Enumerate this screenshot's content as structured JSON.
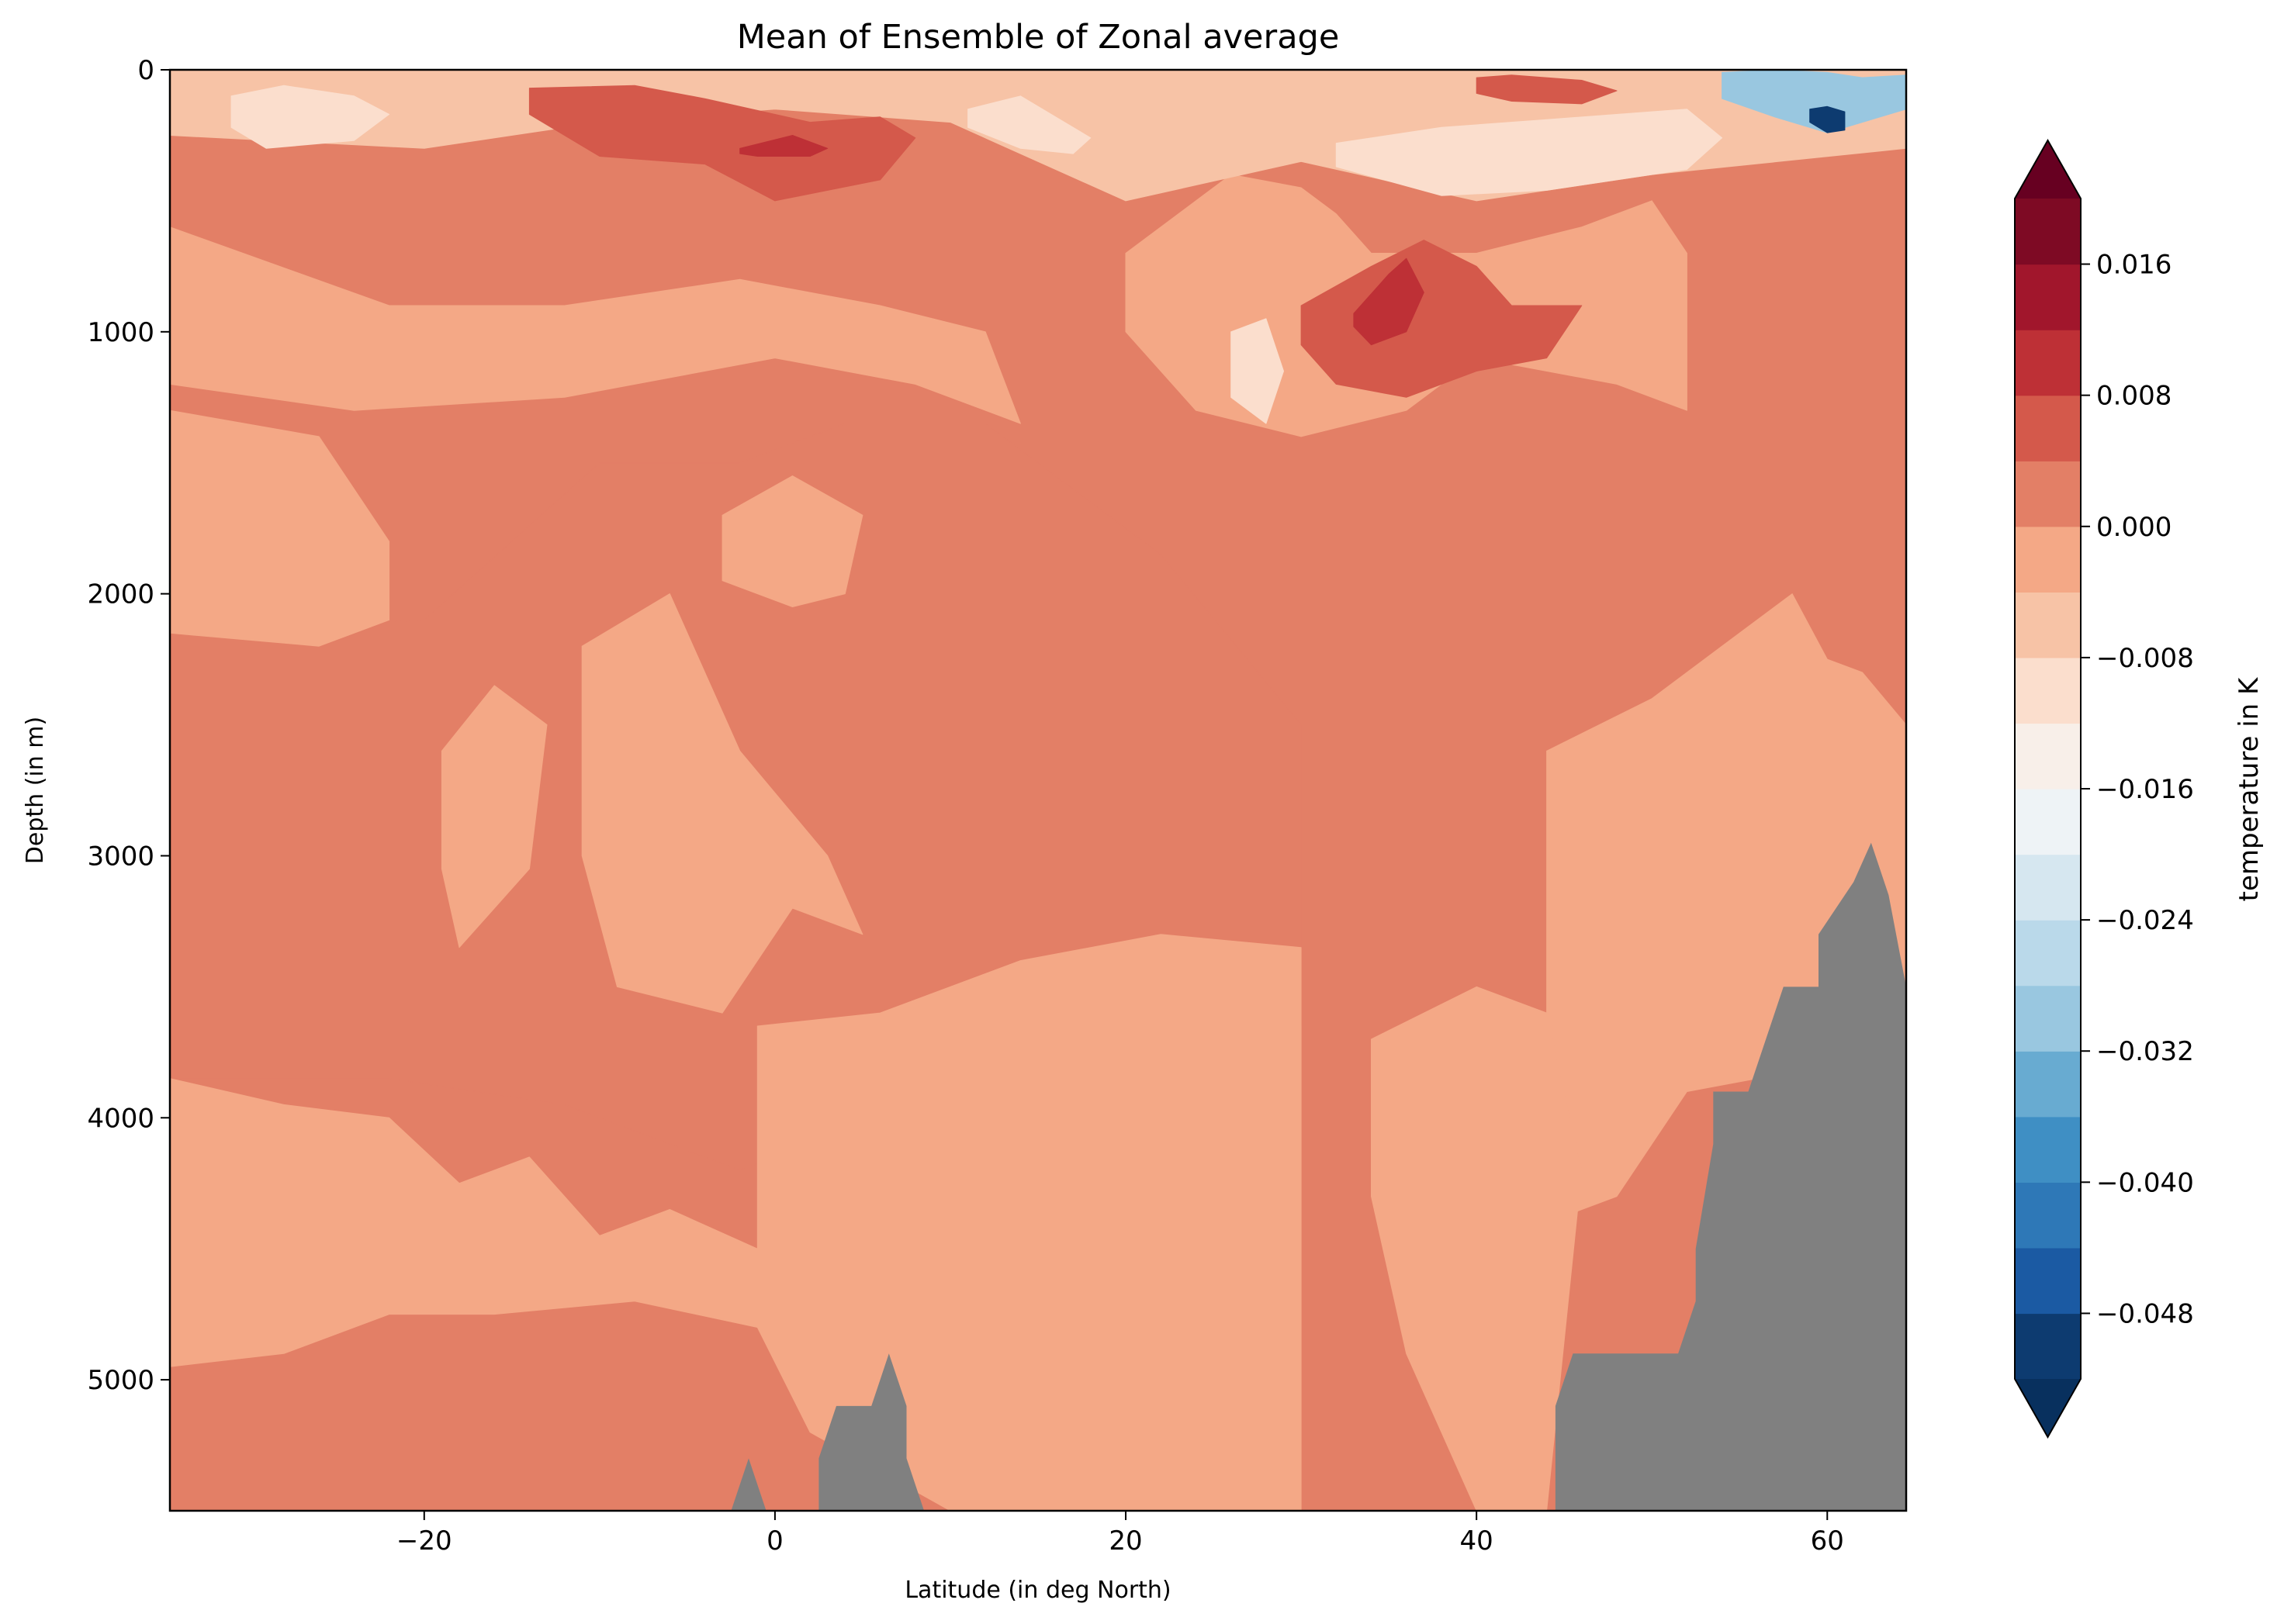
{
  "chart_data": {
    "type": "heatmap",
    "title": "Mean of Ensemble of Zonal average",
    "xlabel": "Latitude (in deg North)",
    "ylabel": "Depth (in m)",
    "xlim": [
      -34.5,
      64.5
    ],
    "ylim": [
      5500,
      0
    ],
    "y_inverted": true,
    "x_ticks": [
      {
        "value": -20,
        "label": "−20"
      },
      {
        "value": 0,
        "label": "0"
      },
      {
        "value": 20,
        "label": "20"
      },
      {
        "value": 40,
        "label": "40"
      },
      {
        "value": 60,
        "label": "60"
      }
    ],
    "y_ticks": [
      {
        "value": 0,
        "label": "0"
      },
      {
        "value": 1000,
        "label": "1000"
      },
      {
        "value": 2000,
        "label": "2000"
      },
      {
        "value": 3000,
        "label": "3000"
      },
      {
        "value": 4000,
        "label": "4000"
      },
      {
        "value": 5000,
        "label": "5000"
      }
    ],
    "grid": false,
    "colormap": "RdBu_r",
    "nan_color": "#808080",
    "colorbar": {
      "label": "temperature in K",
      "levels": [
        -0.052,
        -0.048,
        -0.044,
        -0.04,
        -0.036,
        -0.032,
        -0.028,
        -0.024,
        -0.02,
        -0.016,
        -0.012,
        -0.008,
        -0.004,
        0.0,
        0.004,
        0.008,
        0.012,
        0.016,
        0.02
      ],
      "colors": [
        "#0d3b70",
        "#1b5aa3",
        "#2e78b7",
        "#3f8fc4",
        "#68abd1",
        "#99c7e0",
        "#bad9ea",
        "#d6e7f0",
        "#eef3f6",
        "#f8efe9",
        "#fbdecd",
        "#f7c3a6",
        "#f4a886",
        "#e37f66",
        "#d4594b",
        "#be3036",
        "#a1162c",
        "#7e0a24"
      ],
      "under_color": "#08305e",
      "over_color": "#670021",
      "extend": "both",
      "ticks": [
        {
          "value": 0.016,
          "label": "0.016"
        },
        {
          "value": 0.008,
          "label": "0.008"
        },
        {
          "value": 0.0,
          "label": "0.000"
        },
        {
          "value": -0.008,
          "label": "−0.008"
        },
        {
          "value": -0.016,
          "label": "−0.016"
        },
        {
          "value": -0.024,
          "label": "−0.024"
        },
        {
          "value": -0.032,
          "label": "−0.032"
        },
        {
          "value": -0.04,
          "label": "−0.040"
        },
        {
          "value": -0.048,
          "label": "−0.048"
        }
      ]
    },
    "background_value": 0.002,
    "regions": [
      {
        "desc": "warm core band near 2000-3800 m, west",
        "value": 0.002,
        "x": [
          -34.5,
          -20,
          -10,
          -2,
          4,
          12,
          22,
          30,
          30,
          22,
          12,
          4,
          -2,
          -12,
          -22,
          -34.5
        ],
        "y": [
          2150,
          2100,
          1500,
          1500,
          1350,
          1350,
          1850,
          2500,
          3650,
          4100,
          4300,
          4050,
          4200,
          3950,
          3850,
          3850
        ]
      },
      {
        "desc": "mid-depth cool band",
        "value": -0.002,
        "x": [
          -34.5,
          -22,
          -12,
          -2,
          6,
          12,
          14,
          8,
          0,
          -12,
          -24,
          -34.5
        ],
        "y": [
          600,
          900,
          900,
          800,
          900,
          1000,
          1350,
          1200,
          1100,
          1250,
          1300,
          1200
        ]
      },
      {
        "desc": "cool patch -30..-20 mid",
        "value": -0.002,
        "x": [
          -34.5,
          -26,
          -22,
          -22,
          -26,
          -34.5
        ],
        "y": [
          1300,
          1400,
          1800,
          2100,
          2200,
          2150
        ]
      },
      {
        "desc": "cool patch near -15",
        "value": -0.002,
        "x": [
          -19,
          -16,
          -13,
          -14,
          -18,
          -19
        ],
        "y": [
          2600,
          2350,
          2500,
          3050,
          3350,
          3050
        ]
      },
      {
        "desc": "cool patch near -8",
        "value": -0.002,
        "x": [
          -11,
          -6,
          -2,
          3,
          5,
          1,
          -3,
          -9,
          -11
        ],
        "y": [
          2200,
          2000,
          2600,
          3000,
          3300,
          3200,
          3600,
          3500,
          3000
        ]
      },
      {
        "desc": "cool patch 8-13 near 1500 m",
        "value": -0.002,
        "x": [
          -3,
          1,
          5,
          4,
          1,
          -3
        ],
        "y": [
          1700,
          1550,
          1700,
          2000,
          2050,
          1950
        ]
      },
      {
        "desc": "cool lower west",
        "value": -0.002,
        "x": [
          -34.5,
          -28,
          -22,
          -18,
          -14,
          -10,
          -6,
          -1,
          -1,
          -8,
          -16,
          -22,
          -28,
          -34.5
        ],
        "y": [
          3850,
          3950,
          4000,
          4250,
          4150,
          4450,
          4350,
          4500,
          4800,
          4700,
          4750,
          4750,
          4900,
          4950
        ]
      },
      {
        "desc": "cool central deep",
        "value": -0.002,
        "x": [
          -1,
          6,
          14,
          22,
          30,
          30,
          26,
          18,
          10,
          2,
          -1
        ],
        "y": [
          3650,
          3600,
          3400,
          3300,
          3350,
          5500,
          5500,
          5500,
          5500,
          5200,
          4800
        ]
      },
      {
        "desc": "cool east mid upper",
        "value": -0.002,
        "x": [
          20,
          26,
          30,
          32,
          34,
          40,
          46,
          50,
          52,
          52,
          48,
          44,
          40,
          36,
          30,
          24,
          20
        ],
        "y": [
          700,
          400,
          450,
          550,
          700,
          700,
          600,
          500,
          700,
          1300,
          1200,
          1150,
          1100,
          1300,
          1400,
          1300,
          1000
        ]
      },
      {
        "desc": "cool east deep",
        "value": -0.002,
        "x": [
          44,
          50,
          54,
          58,
          60,
          62,
          64.5,
          64.5,
          60,
          56,
          52,
          48,
          44
        ],
        "y": [
          2600,
          2400,
          2200,
          2000,
          2250,
          2300,
          2500,
          3500,
          3700,
          3850,
          3900,
          4300,
          4400
        ]
      },
      {
        "desc": "cool east band",
        "value": -0.002,
        "x": [
          34,
          40,
          44,
          46,
          44,
          40,
          36,
          34
        ],
        "y": [
          3700,
          3500,
          3600,
          4200,
          5500,
          5500,
          4900,
          4300
        ]
      },
      {
        "desc": "surface cool layer",
        "value": -0.006,
        "x": [
          -34.5,
          -20,
          -10,
          0,
          10,
          20,
          30,
          40,
          50,
          64.5,
          64.5,
          50,
          40,
          30,
          20,
          10,
          0,
          -10,
          -20,
          -34.5
        ],
        "y": [
          0,
          0,
          0,
          0,
          0,
          0,
          0,
          0,
          0,
          0,
          300,
          400,
          500,
          350,
          500,
          200,
          150,
          200,
          300,
          250
        ]
      },
      {
        "desc": "cool surface patch -28..-22",
        "value": -0.01,
        "x": [
          -31,
          -28,
          -24,
          -22,
          -24,
          -29,
          -31
        ],
        "y": [
          100,
          60,
          100,
          170,
          270,
          300,
          220
        ]
      },
      {
        "desc": "cool surface patch 14",
        "value": -0.01,
        "x": [
          11,
          14,
          16,
          18,
          17,
          14,
          11
        ],
        "y": [
          150,
          100,
          180,
          260,
          320,
          300,
          220
        ]
      },
      {
        "desc": "cool surface 32-54",
        "value": -0.01,
        "x": [
          32,
          38,
          44,
          52,
          54,
          52,
          44,
          38,
          32
        ],
        "y": [
          280,
          220,
          190,
          150,
          260,
          380,
          460,
          480,
          370
        ]
      },
      {
        "desc": "cool surface patch 27",
        "value": -0.01,
        "x": [
          26,
          28,
          29,
          28,
          26
        ],
        "y": [
          1000,
          950,
          1150,
          1350,
          1250
        ]
      },
      {
        "desc": "warm surface -10..2",
        "value": 0.006,
        "x": [
          -14,
          -8,
          -4,
          2,
          6,
          8,
          6,
          0,
          -4,
          -10,
          -14
        ],
        "y": [
          70,
          60,
          110,
          200,
          180,
          260,
          420,
          500,
          360,
          330,
          170
        ]
      },
      {
        "desc": "warm surface 38-46",
        "value": 0.006,
        "x": [
          40,
          42,
          46,
          48,
          46,
          42,
          40
        ],
        "y": [
          30,
          20,
          40,
          80,
          130,
          120,
          90
        ]
      },
      {
        "desc": "warm subsurface 32-40",
        "value": 0.006,
        "x": [
          30,
          34,
          37,
          40,
          42,
          46,
          44,
          40,
          36,
          32,
          30
        ],
        "y": [
          900,
          750,
          650,
          750,
          900,
          900,
          1100,
          1150,
          1250,
          1200,
          1050
        ]
      },
      {
        "desc": "hot core near 0",
        "value": 0.01,
        "x": [
          -2,
          1,
          3,
          2,
          -1,
          -2
        ],
        "y": [
          300,
          250,
          300,
          330,
          330,
          320
        ]
      },
      {
        "desc": "hot core near 36",
        "value": 0.01,
        "x": [
          33,
          35,
          36,
          37,
          36,
          34,
          33
        ],
        "y": [
          930,
          780,
          720,
          850,
          1000,
          1050,
          980
        ]
      },
      {
        "desc": "cold surface corner",
        "value": -0.03,
        "x": [
          54,
          57,
          60,
          62,
          64.5,
          64.5,
          62,
          60,
          57,
          54
        ],
        "y": [
          10,
          0,
          10,
          30,
          20,
          150,
          200,
          240,
          180,
          110
        ]
      },
      {
        "desc": "very cold spot",
        "value": -0.05,
        "x": [
          59,
          60,
          61,
          61,
          60,
          59
        ],
        "y": [
          150,
          140,
          160,
          230,
          240,
          200
        ]
      }
    ],
    "masked_regions": [
      {
        "desc": "seafloor west",
        "x": [
          -2.5,
          -1.5,
          -0.5,
          -0.5,
          -2.5
        ],
        "y": [
          5500,
          5300,
          5500,
          5500,
          5500
        ]
      },
      {
        "desc": "seafloor ridge",
        "x": [
          2.5,
          2.5,
          3.5,
          5.5,
          6.5,
          7.5,
          7.5,
          8.5,
          2.5
        ],
        "y": [
          5500,
          5300,
          5100,
          5100,
          4900,
          5100,
          5300,
          5500,
          5500
        ]
      },
      {
        "desc": "seafloor east",
        "x": [
          44.5,
          44.5,
          45.5,
          51.5,
          52.5,
          52.5,
          53.5,
          53.5,
          55.5,
          56.5,
          57.5,
          59.5,
          59.5,
          61.5,
          62.5,
          63.5,
          64.5,
          64.5,
          44.5
        ],
        "y": [
          5500,
          5100,
          4900,
          4900,
          4700,
          4500,
          4100,
          3900,
          3900,
          3700,
          3500,
          3500,
          3300,
          3100,
          2950,
          3150,
          3500,
          5500,
          5500
        ]
      }
    ]
  }
}
